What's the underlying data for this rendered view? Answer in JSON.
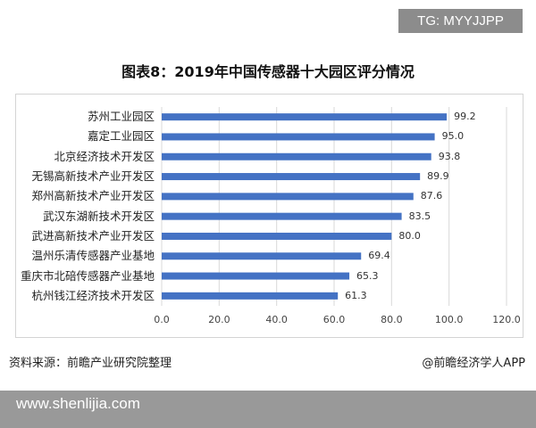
{
  "tag": "TG: MYYJJPP",
  "footer": {
    "source": "资料来源：前瞻产业研究院整理",
    "brand": "@前瞻经济学人APP"
  },
  "site": "www.shenlijia.com",
  "colors": {
    "bar": "#4472c4",
    "grid": "#d9d9d9"
  },
  "chart_data": {
    "type": "bar",
    "orientation": "horizontal",
    "title": "图表8：2019年中国传感器十大园区评分情况",
    "categories": [
      "苏州工业园区",
      "嘉定工业园区",
      "北京经济技术开发区",
      "无锡高新技术产业开发区",
      "郑州高新技术产业开发区",
      "武汉东湖新技术开发区",
      "武进高新技术产业开发区",
      "温州乐清传感器产业基地",
      "重庆市北碚传感器产业基地",
      "杭州钱江经济技术开发区"
    ],
    "values": [
      99.2,
      95.0,
      93.8,
      89.9,
      87.6,
      83.5,
      80.0,
      69.4,
      65.3,
      61.3
    ],
    "value_labels": [
      "99.2",
      "95.0",
      "93.8",
      "89.9",
      "87.6",
      "83.5",
      "80.0",
      "69.4",
      "65.3",
      "61.3"
    ],
    "xlim": [
      0,
      120
    ],
    "xticks": [
      "0.0",
      "20.0",
      "40.0",
      "60.0",
      "80.0",
      "100.0",
      "120.0"
    ],
    "grid": true
  }
}
